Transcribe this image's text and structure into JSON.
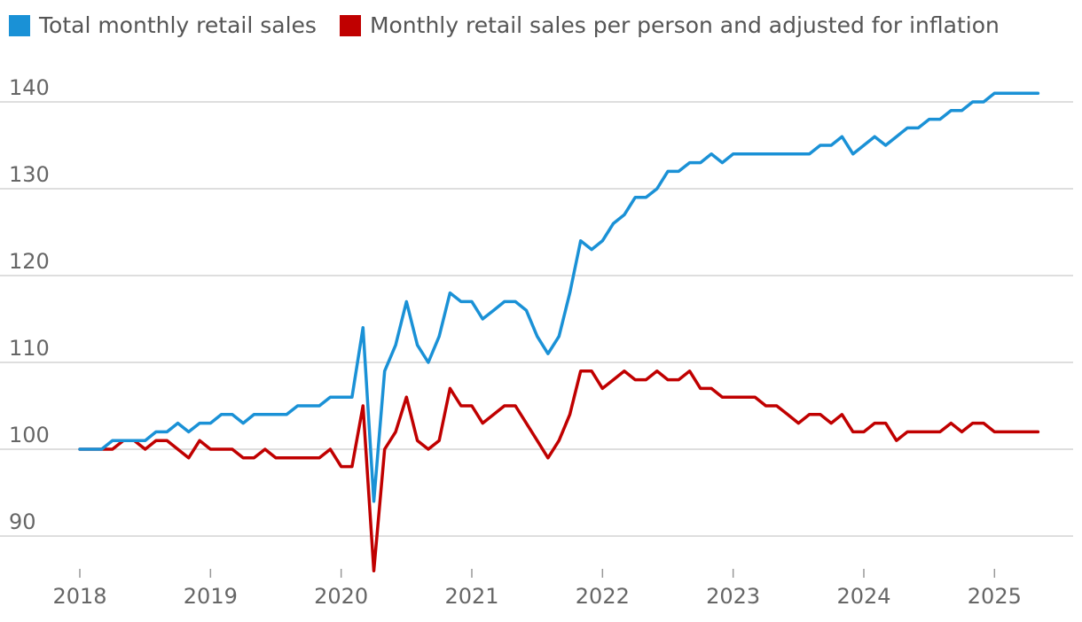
{
  "chart_data": {
    "type": "line",
    "title": "",
    "xlabel": "",
    "ylabel": "",
    "ylim": [
      86,
      146
    ],
    "yticks": [
      90,
      100,
      110,
      120,
      130,
      140
    ],
    "xticks": [
      "2018",
      "2019",
      "2020",
      "2021",
      "2022",
      "2023",
      "2024",
      "2025"
    ],
    "grid": true,
    "legend_position": "top-left",
    "series": [
      {
        "name": "Total monthly retail sales",
        "color": "#1a91d6",
        "points": [
          [
            2018.0,
            100
          ],
          [
            2018.083,
            100
          ],
          [
            2018.167,
            100
          ],
          [
            2018.25,
            101
          ],
          [
            2018.333,
            101
          ],
          [
            2018.417,
            101
          ],
          [
            2018.5,
            101
          ],
          [
            2018.583,
            102
          ],
          [
            2018.667,
            102
          ],
          [
            2018.75,
            103
          ],
          [
            2018.833,
            102
          ],
          [
            2018.917,
            103
          ],
          [
            2019.0,
            103
          ],
          [
            2019.083,
            104
          ],
          [
            2019.167,
            104
          ],
          [
            2019.25,
            103
          ],
          [
            2019.333,
            104
          ],
          [
            2019.417,
            104
          ],
          [
            2019.5,
            104
          ],
          [
            2019.583,
            104
          ],
          [
            2019.667,
            105
          ],
          [
            2019.75,
            105
          ],
          [
            2019.833,
            105
          ],
          [
            2019.917,
            106
          ],
          [
            2020.0,
            106
          ],
          [
            2020.083,
            106
          ],
          [
            2020.167,
            114
          ],
          [
            2020.25,
            94
          ],
          [
            2020.333,
            109
          ],
          [
            2020.417,
            112
          ],
          [
            2020.5,
            117
          ],
          [
            2020.583,
            112
          ],
          [
            2020.667,
            110
          ],
          [
            2020.75,
            113
          ],
          [
            2020.833,
            118
          ],
          [
            2020.917,
            117
          ],
          [
            2021.0,
            117
          ],
          [
            2021.083,
            115
          ],
          [
            2021.167,
            116
          ],
          [
            2021.25,
            117
          ],
          [
            2021.333,
            117
          ],
          [
            2021.417,
            116
          ],
          [
            2021.5,
            113
          ],
          [
            2021.583,
            111
          ],
          [
            2021.667,
            113
          ],
          [
            2021.75,
            118
          ],
          [
            2021.833,
            124
          ],
          [
            2021.917,
            123
          ],
          [
            2022.0,
            124
          ],
          [
            2022.083,
            126
          ],
          [
            2022.167,
            127
          ],
          [
            2022.25,
            129
          ],
          [
            2022.333,
            129
          ],
          [
            2022.417,
            130
          ],
          [
            2022.5,
            132
          ],
          [
            2022.583,
            132
          ],
          [
            2022.667,
            133
          ],
          [
            2022.75,
            133
          ],
          [
            2022.833,
            134
          ],
          [
            2022.917,
            133
          ],
          [
            2023.0,
            134
          ],
          [
            2023.083,
            134
          ],
          [
            2023.167,
            134
          ],
          [
            2023.25,
            134
          ],
          [
            2023.333,
            134
          ],
          [
            2023.417,
            134
          ],
          [
            2023.5,
            134
          ],
          [
            2023.583,
            134
          ],
          [
            2023.667,
            135
          ],
          [
            2023.75,
            135
          ],
          [
            2023.833,
            136
          ],
          [
            2023.917,
            134
          ],
          [
            2024.0,
            135
          ],
          [
            2024.083,
            136
          ],
          [
            2024.167,
            135
          ],
          [
            2024.25,
            136
          ],
          [
            2024.333,
            137
          ],
          [
            2024.417,
            137
          ],
          [
            2024.5,
            138
          ],
          [
            2024.583,
            138
          ],
          [
            2024.667,
            139
          ],
          [
            2024.75,
            139
          ],
          [
            2024.833,
            140
          ],
          [
            2024.917,
            140
          ],
          [
            2025.0,
            141
          ],
          [
            2025.083,
            141
          ],
          [
            2025.167,
            141
          ],
          [
            2025.25,
            141
          ],
          [
            2025.333,
            141
          ]
        ]
      },
      {
        "name": "Monthly retail sales per person and adjusted for inflation",
        "color": "#c00000",
        "points": [
          [
            2018.0,
            100
          ],
          [
            2018.083,
            100
          ],
          [
            2018.167,
            100
          ],
          [
            2018.25,
            100
          ],
          [
            2018.333,
            101
          ],
          [
            2018.417,
            101
          ],
          [
            2018.5,
            100
          ],
          [
            2018.583,
            101
          ],
          [
            2018.667,
            101
          ],
          [
            2018.75,
            100
          ],
          [
            2018.833,
            99
          ],
          [
            2018.917,
            101
          ],
          [
            2019.0,
            100
          ],
          [
            2019.083,
            100
          ],
          [
            2019.167,
            100
          ],
          [
            2019.25,
            99
          ],
          [
            2019.333,
            99
          ],
          [
            2019.417,
            100
          ],
          [
            2019.5,
            99
          ],
          [
            2019.583,
            99
          ],
          [
            2019.667,
            99
          ],
          [
            2019.75,
            99
          ],
          [
            2019.833,
            99
          ],
          [
            2019.917,
            100
          ],
          [
            2020.0,
            98
          ],
          [
            2020.083,
            98
          ],
          [
            2020.167,
            105
          ],
          [
            2020.25,
            86
          ],
          [
            2020.333,
            100
          ],
          [
            2020.417,
            102
          ],
          [
            2020.5,
            106
          ],
          [
            2020.583,
            101
          ],
          [
            2020.667,
            100
          ],
          [
            2020.75,
            101
          ],
          [
            2020.833,
            107
          ],
          [
            2020.917,
            105
          ],
          [
            2021.0,
            105
          ],
          [
            2021.083,
            103
          ],
          [
            2021.167,
            104
          ],
          [
            2021.25,
            105
          ],
          [
            2021.333,
            105
          ],
          [
            2021.417,
            103
          ],
          [
            2021.5,
            101
          ],
          [
            2021.583,
            99
          ],
          [
            2021.667,
            101
          ],
          [
            2021.75,
            104
          ],
          [
            2021.833,
            109
          ],
          [
            2021.917,
            109
          ],
          [
            2022.0,
            107
          ],
          [
            2022.083,
            108
          ],
          [
            2022.167,
            109
          ],
          [
            2022.25,
            108
          ],
          [
            2022.333,
            108
          ],
          [
            2022.417,
            109
          ],
          [
            2022.5,
            108
          ],
          [
            2022.583,
            108
          ],
          [
            2022.667,
            109
          ],
          [
            2022.75,
            107
          ],
          [
            2022.833,
            107
          ],
          [
            2022.917,
            106
          ],
          [
            2023.0,
            106
          ],
          [
            2023.083,
            106
          ],
          [
            2023.167,
            106
          ],
          [
            2023.25,
            105
          ],
          [
            2023.333,
            105
          ],
          [
            2023.417,
            104
          ],
          [
            2023.5,
            103
          ],
          [
            2023.583,
            104
          ],
          [
            2023.667,
            104
          ],
          [
            2023.75,
            103
          ],
          [
            2023.833,
            104
          ],
          [
            2023.917,
            102
          ],
          [
            2024.0,
            102
          ],
          [
            2024.083,
            103
          ],
          [
            2024.167,
            103
          ],
          [
            2024.25,
            101
          ],
          [
            2024.333,
            102
          ],
          [
            2024.417,
            102
          ],
          [
            2024.5,
            102
          ],
          [
            2024.583,
            102
          ],
          [
            2024.667,
            103
          ],
          [
            2024.75,
            102
          ],
          [
            2024.833,
            103
          ],
          [
            2024.917,
            103
          ],
          [
            2025.0,
            102
          ],
          [
            2025.083,
            102
          ],
          [
            2025.167,
            102
          ],
          [
            2025.25,
            102
          ],
          [
            2025.333,
            102
          ]
        ]
      }
    ]
  }
}
